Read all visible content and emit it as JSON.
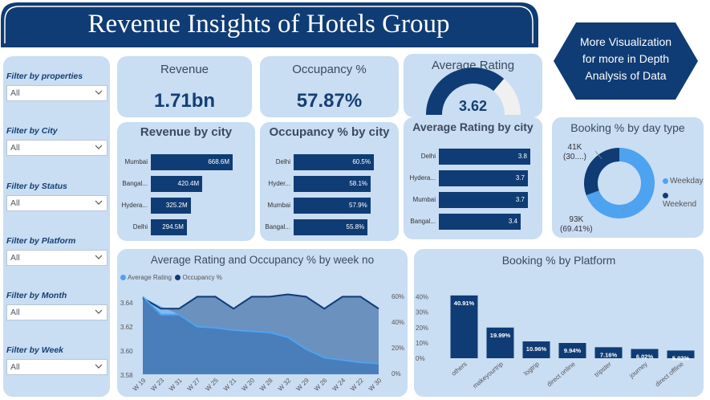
{
  "title": "Revenue Insights of Hotels Group",
  "more_viz": {
    "line1": "More Visualization",
    "line2": "for more in Depth",
    "line3": "Analysis of Data"
  },
  "filters": [
    {
      "label": "Filter by properties",
      "value": "All"
    },
    {
      "label": "Filter by City",
      "value": "All"
    },
    {
      "label": "Filter by Status",
      "value": "All"
    },
    {
      "label": "Filter by Platform",
      "value": "All"
    },
    {
      "label": "Filter by Month",
      "value": "All"
    },
    {
      "label": "Filter by Week",
      "value": "All"
    }
  ],
  "kpis": {
    "revenue": {
      "label": "Revenue",
      "value": "1.71bn"
    },
    "occupancy": {
      "label": "Occupancy %",
      "value": "57.87%"
    },
    "rating": {
      "label": "Average Rating",
      "value": "3.62",
      "gauge_fraction": 0.724
    }
  },
  "colors": {
    "navy": "#0f3c74",
    "light_blue": "#4da3ef",
    "card": "#c9ddf3"
  },
  "charts": {
    "revenue_by_city": {
      "type": "bar",
      "title": "Revenue by city",
      "categories": [
        "Mumbai",
        "Bangal...",
        "Hydera...",
        "Delhi"
      ],
      "values": [
        668.6,
        420.4,
        325.2,
        294.5
      ],
      "labels": [
        "668.6M",
        "420.4M",
        "325.2M",
        "294.5M"
      ],
      "max": 668.6
    },
    "occupancy_by_city": {
      "type": "bar",
      "title": "Occupancy % by city",
      "categories": [
        "Delhi",
        "Hyder...",
        "Mumbai",
        "Bangal..."
      ],
      "values": [
        60.5,
        58.1,
        57.9,
        55.8
      ],
      "labels": [
        "60.5%",
        "58.1%",
        "57.9%",
        "55.8%"
      ],
      "max": 60.5
    },
    "rating_by_city": {
      "type": "bar",
      "title": "Average Rating by city",
      "categories": [
        "Delhi",
        "Hydera...",
        "Mumbai",
        "Bangal..."
      ],
      "values": [
        3.8,
        3.7,
        3.7,
        3.4
      ],
      "labels": [
        "3.8",
        "3.7",
        "3.7",
        "3.4"
      ],
      "max": 3.8
    },
    "day_type": {
      "type": "pie",
      "title": "Booking % by day type",
      "slices": [
        {
          "name": "Weekday",
          "value": 69.41,
          "label_a": "93K",
          "label_b": "(69.41%)",
          "color": "#4da3ef"
        },
        {
          "name": "Weekend",
          "value": 30.59,
          "label_a": "41K",
          "label_b": "(30....)",
          "color": "#0f3c74"
        }
      ]
    },
    "weekly": {
      "type": "area",
      "title": "Average Rating and Occupancy % by week no",
      "legend": [
        "Average Rating",
        "Occupancy %"
      ],
      "x": [
        "W 19",
        "W 23",
        "W 31",
        "W 27",
        "W 25",
        "W 21",
        "W 20",
        "W 28",
        "W 32",
        "W 29",
        "W 26",
        "W 24",
        "W 22",
        "W 30"
      ],
      "rating": [
        3.645,
        3.63,
        3.63,
        3.62,
        3.619,
        3.617,
        3.616,
        3.615,
        3.611,
        3.601,
        3.594,
        3.592,
        3.59,
        3.589
      ],
      "occupancy": [
        64,
        55,
        55,
        65,
        65,
        55,
        65,
        65,
        67,
        65,
        55,
        65,
        65,
        55
      ],
      "y_left_ticks": [
        "3.64",
        "3.62",
        "3.60",
        "3.58"
      ],
      "y_right_ticks": [
        "60%",
        "40%",
        "20%",
        "0%"
      ],
      "ylim_left": [
        3.58,
        3.65
      ],
      "ylim_right": [
        0,
        70
      ]
    },
    "platform": {
      "type": "bar",
      "title": "Booking % by Platform",
      "categories": [
        "others",
        "makeyourtrip",
        "logtrip",
        "direct online",
        "tripster",
        "journey",
        "direct offline"
      ],
      "values": [
        40.91,
        19.99,
        10.96,
        9.94,
        7.16,
        6.02,
        5.02
      ],
      "labels": [
        "40.91%",
        "19.99%",
        "10.96%",
        "9.94%",
        "7.16%",
        "6.02%",
        "5.02%"
      ],
      "y_ticks": [
        "40%",
        "30%",
        "20%",
        "10%",
        "0%"
      ],
      "ylim": [
        0,
        45
      ]
    }
  }
}
